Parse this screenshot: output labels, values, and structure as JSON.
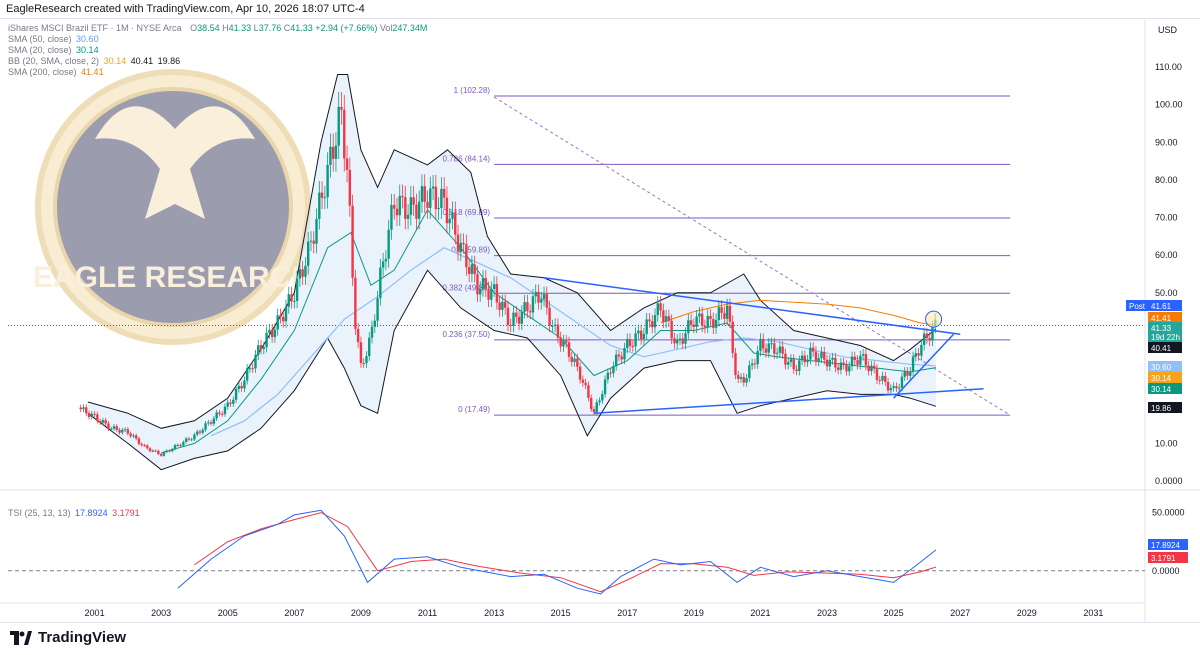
{
  "header": {
    "caption": "EagleResearch created with TradingView.com, Apr 10, 2026 18:07 UTC-4"
  },
  "footer": {
    "brand": "TradingView"
  },
  "legend": {
    "instrument": "iShares MSCI Brazil ETF · 1M · NYSE Arca",
    "ohlc": {
      "o_label": "O",
      "o": "38.54",
      "h_label": "H",
      "h": "41.33",
      "l_label": "L",
      "l": "37.76",
      "c_label": "C",
      "c": "41.33",
      "chg": "+2.94 (+7.66%)",
      "vol_label": "Vol",
      "vol": "247.34M"
    },
    "sma50": {
      "label": "SMA (50, close)",
      "value": "30.60"
    },
    "sma20": {
      "label": "SMA (20, close)",
      "value": "30.14"
    },
    "bb": {
      "label": "BB (20, SMA, close, 2)",
      "v1": "30.14",
      "v2": "40.41",
      "v3": "19.86"
    },
    "sma200": {
      "label": "SMA (200, close)",
      "value": "41.41"
    }
  },
  "tsi_legend": {
    "label": "TSI (25, 13, 13)",
    "v1": "17.8924",
    "v2": "3.1791"
  },
  "watermark": {
    "text": "EAGLE RESEARCH"
  },
  "price_axis": {
    "currency": "USD",
    "ticks": [
      "110.00",
      "100.00",
      "90.00",
      "80.00",
      "70.00",
      "60.00",
      "50.00",
      "40.00",
      "30.00",
      "20.00",
      "10.00",
      "0.0000"
    ],
    "badges": [
      {
        "text": "Post",
        "value": "41.61",
        "color": "#2962ff"
      },
      {
        "value": "41.41",
        "color": "#f57c00"
      },
      {
        "value": "41.33",
        "extra": "19d 22h",
        "color": "#26a69a"
      },
      {
        "value": "40.41",
        "color": "#131722"
      },
      {
        "value": "30.60",
        "color": "#90bff9"
      },
      {
        "value": "30.14",
        "color": "#f7a21b"
      },
      {
        "value": "30.14",
        "color": "#089981"
      },
      {
        "value": "19.86",
        "color": "#131722"
      }
    ]
  },
  "tsi_axis": {
    "ticks": [
      "50.0000",
      "0.0000"
    ],
    "badges": [
      {
        "value": "17.8924",
        "color": "#2962ff"
      },
      {
        "value": "3.1791",
        "color": "#f23645"
      }
    ]
  },
  "chart_data": {
    "type": "line",
    "title": "",
    "x_axis_ticks": [
      "2001",
      "2003",
      "2005",
      "2007",
      "2009",
      "2011",
      "2013",
      "2015",
      "2017",
      "2019",
      "2021",
      "2023",
      "2025",
      "2027",
      "2029",
      "2031"
    ],
    "ylim": [
      0,
      110
    ],
    "price_path": [
      [
        2000.5,
        19.5
      ],
      [
        2001.0,
        17.0
      ],
      [
        2001.5,
        14.0
      ],
      [
        2002.0,
        13.0
      ],
      [
        2002.5,
        9.0
      ],
      [
        2003.0,
        7.0
      ],
      [
        2003.5,
        9.5
      ],
      [
        2004.0,
        12.0
      ],
      [
        2004.5,
        16.0
      ],
      [
        2005.0,
        20.0
      ],
      [
        2005.5,
        27.0
      ],
      [
        2006.0,
        36.0
      ],
      [
        2006.5,
        42.0
      ],
      [
        2007.0,
        50.0
      ],
      [
        2007.5,
        63.0
      ],
      [
        2007.8,
        75.0
      ],
      [
        2008.0,
        82.0
      ],
      [
        2008.4,
        98.0
      ],
      [
        2008.6,
        82.0
      ],
      [
        2008.8,
        45.0
      ],
      [
        2009.0,
        30.0
      ],
      [
        2009.3,
        38.0
      ],
      [
        2009.6,
        55.0
      ],
      [
        2010.0,
        74.0
      ],
      [
        2010.5,
        72.0
      ],
      [
        2011.0,
        76.0
      ],
      [
        2011.5,
        74.0
      ],
      [
        2012.0,
        62.0
      ],
      [
        2012.5,
        52.0
      ],
      [
        2013.0,
        50.0
      ],
      [
        2013.5,
        42.0
      ],
      [
        2014.0,
        46.0
      ],
      [
        2014.4,
        50.0
      ],
      [
        2014.8,
        40.0
      ],
      [
        2015.2,
        35.0
      ],
      [
        2015.6,
        28.0
      ],
      [
        2016.0,
        18.0
      ],
      [
        2016.5,
        30.0
      ],
      [
        2017.0,
        36.0
      ],
      [
        2017.5,
        40.0
      ],
      [
        2018.0,
        46.0
      ],
      [
        2018.5,
        36.0
      ],
      [
        2019.0,
        43.0
      ],
      [
        2019.5,
        42.0
      ],
      [
        2020.0,
        46.0
      ],
      [
        2020.3,
        26.0
      ],
      [
        2020.6,
        28.0
      ],
      [
        2021.0,
        36.0
      ],
      [
        2021.5,
        35.0
      ],
      [
        2022.0,
        30.0
      ],
      [
        2022.5,
        34.0
      ],
      [
        2023.0,
        32.0
      ],
      [
        2023.5,
        30.0
      ],
      [
        2024.0,
        33.0
      ],
      [
        2024.5,
        28.0
      ],
      [
        2025.0,
        24.0
      ],
      [
        2025.5,
        30.0
      ],
      [
        2025.8,
        36.0
      ],
      [
        2026.27,
        41.33
      ]
    ],
    "sma20_path": [
      [
        2003.0,
        7.5
      ],
      [
        2004.0,
        10.0
      ],
      [
        2005.0,
        16.0
      ],
      [
        2006.0,
        27.0
      ],
      [
        2007.0,
        40.0
      ],
      [
        2008.0,
        62.0
      ],
      [
        2008.7,
        66.0
      ],
      [
        2009.3,
        52.0
      ],
      [
        2010.0,
        56.0
      ],
      [
        2011.0,
        72.0
      ],
      [
        2012.0,
        62.0
      ],
      [
        2013.0,
        50.0
      ],
      [
        2014.0,
        44.0
      ],
      [
        2015.0,
        38.0
      ],
      [
        2016.0,
        28.0
      ],
      [
        2017.0,
        32.0
      ],
      [
        2018.0,
        40.0
      ],
      [
        2019.0,
        40.0
      ],
      [
        2020.0,
        42.0
      ],
      [
        2020.8,
        34.0
      ],
      [
        2021.5,
        33.0
      ],
      [
        2022.5,
        32.0
      ],
      [
        2023.5,
        31.0
      ],
      [
        2024.5,
        30.0
      ],
      [
        2025.5,
        29.0
      ],
      [
        2026.27,
        30.14
      ]
    ],
    "sma50_path": [
      [
        2004.5,
        12.0
      ],
      [
        2005.5,
        16.0
      ],
      [
        2006.5,
        23.0
      ],
      [
        2007.5,
        33.0
      ],
      [
        2008.5,
        43.0
      ],
      [
        2009.5,
        49.0
      ],
      [
        2010.5,
        56.0
      ],
      [
        2011.5,
        62.0
      ],
      [
        2012.5,
        58.0
      ],
      [
        2013.5,
        54.0
      ],
      [
        2014.5,
        48.0
      ],
      [
        2015.5,
        42.0
      ],
      [
        2016.5,
        36.0
      ],
      [
        2017.5,
        33.0
      ],
      [
        2018.5,
        35.0
      ],
      [
        2019.5,
        37.0
      ],
      [
        2020.5,
        38.0
      ],
      [
        2021.5,
        37.0
      ],
      [
        2022.5,
        35.0
      ],
      [
        2023.5,
        33.0
      ],
      [
        2024.5,
        32.0
      ],
      [
        2025.5,
        31.0
      ],
      [
        2026.27,
        30.6
      ]
    ],
    "sma200_path": [
      [
        2018.0,
        42.0
      ],
      [
        2019.0,
        45.0
      ],
      [
        2020.0,
        47.0
      ],
      [
        2021.0,
        48.0
      ],
      [
        2022.0,
        47.5
      ],
      [
        2023.0,
        47.0
      ],
      [
        2024.0,
        46.0
      ],
      [
        2025.0,
        44.0
      ],
      [
        2025.8,
        42.0
      ],
      [
        2026.27,
        41.41
      ]
    ],
    "bb_upper_path": [
      [
        2000.8,
        21.0
      ],
      [
        2002.0,
        18.0
      ],
      [
        2003.0,
        14.0
      ],
      [
        2004.0,
        16.0
      ],
      [
        2005.0,
        22.0
      ],
      [
        2006.0,
        35.0
      ],
      [
        2007.0,
        50.0
      ],
      [
        2007.8,
        90.0
      ],
      [
        2008.3,
        108.0
      ],
      [
        2008.6,
        108.0
      ],
      [
        2009.0,
        88.0
      ],
      [
        2009.5,
        78.0
      ],
      [
        2010.0,
        88.0
      ],
      [
        2011.0,
        84.0
      ],
      [
        2011.6,
        88.0
      ],
      [
        2012.3,
        82.0
      ],
      [
        2012.8,
        65.0
      ],
      [
        2013.5,
        55.0
      ],
      [
        2014.5,
        54.0
      ],
      [
        2015.5,
        50.0
      ],
      [
        2016.5,
        40.0
      ],
      [
        2017.5,
        46.0
      ],
      [
        2018.5,
        50.0
      ],
      [
        2019.5,
        50.0
      ],
      [
        2020.5,
        55.0
      ],
      [
        2021.0,
        48.0
      ],
      [
        2022.0,
        40.0
      ],
      [
        2023.0,
        38.0
      ],
      [
        2024.0,
        36.0
      ],
      [
        2025.0,
        32.0
      ],
      [
        2025.5,
        35.0
      ],
      [
        2026.27,
        40.41
      ]
    ],
    "bb_lower_path": [
      [
        2000.8,
        18.0
      ],
      [
        2002.0,
        10.0
      ],
      [
        2003.0,
        3.0
      ],
      [
        2004.0,
        6.0
      ],
      [
        2005.0,
        8.0
      ],
      [
        2006.0,
        14.0
      ],
      [
        2007.0,
        24.0
      ],
      [
        2008.0,
        38.0
      ],
      [
        2008.5,
        30.0
      ],
      [
        2009.0,
        20.0
      ],
      [
        2009.5,
        18.0
      ],
      [
        2010.0,
        40.0
      ],
      [
        2011.0,
        56.0
      ],
      [
        2012.0,
        46.0
      ],
      [
        2013.0,
        40.0
      ],
      [
        2014.0,
        38.0
      ],
      [
        2015.0,
        28.0
      ],
      [
        2015.8,
        12.0
      ],
      [
        2016.5,
        22.0
      ],
      [
        2017.5,
        30.0
      ],
      [
        2018.5,
        32.0
      ],
      [
        2019.5,
        32.0
      ],
      [
        2020.3,
        18.0
      ],
      [
        2021.0,
        20.0
      ],
      [
        2022.0,
        22.0
      ],
      [
        2023.0,
        24.0
      ],
      [
        2024.0,
        23.0
      ],
      [
        2025.0,
        23.0
      ],
      [
        2025.5,
        22.0
      ],
      [
        2026.27,
        19.86
      ]
    ],
    "fib_levels": [
      {
        "ratio": "1",
        "price": 102.28,
        "label": "1 (102.28)"
      },
      {
        "ratio": "0.786",
        "price": 84.14,
        "label": "0.786 (84.14)"
      },
      {
        "ratio": "0.618",
        "price": 69.89,
        "label": "0.618 (69.89)"
      },
      {
        "ratio": "0.5",
        "price": 59.89,
        "label": "0.5 (59.89)"
      },
      {
        "ratio": "0.382",
        "price": 49.88,
        "label": "0.382 (49.88)"
      },
      {
        "ratio": "0.236",
        "price": 37.5,
        "label": "0.236 (37.50)"
      },
      {
        "ratio": "0",
        "price": 17.49,
        "label": "0 (17.49)"
      }
    ],
    "fib_x_range": [
      2013.0,
      2028.5
    ],
    "trend_lines": [
      {
        "from": [
          2014.5,
          54.0
        ],
        "to": [
          2027.0,
          39.0
        ]
      },
      {
        "from": [
          2016.0,
          18.0
        ],
        "to": [
          2027.7,
          24.5
        ]
      },
      {
        "from": [
          2025.0,
          22.0
        ],
        "to": [
          2026.8,
          39.0
        ]
      }
    ],
    "dashed_trend": {
      "from": [
        2013.0,
        102.0
      ],
      "to": [
        2028.5,
        17.5
      ]
    },
    "current_price_line": 41.33,
    "highlight_circle": [
      2026.2,
      43.0
    ],
    "tsi": {
      "ylim": [
        -20,
        60
      ],
      "zero_line": 0,
      "tsi_path": [
        [
          2003.5,
          -15.0
        ],
        [
          2004.5,
          10.0
        ],
        [
          2005.5,
          30.0
        ],
        [
          2006.5,
          40.0
        ],
        [
          2007.0,
          48.0
        ],
        [
          2007.8,
          52.0
        ],
        [
          2008.5,
          30.0
        ],
        [
          2009.2,
          -10.0
        ],
        [
          2010.0,
          10.0
        ],
        [
          2011.0,
          12.0
        ],
        [
          2012.0,
          3.0
        ],
        [
          2013.5,
          -5.0
        ],
        [
          2014.5,
          -3.0
        ],
        [
          2015.5,
          -15.0
        ],
        [
          2016.2,
          -20.0
        ],
        [
          2016.8,
          -5.0
        ],
        [
          2017.8,
          10.0
        ],
        [
          2018.6,
          5.0
        ],
        [
          2019.5,
          8.0
        ],
        [
          2020.3,
          -10.0
        ],
        [
          2021.0,
          3.0
        ],
        [
          2022.0,
          -5.0
        ],
        [
          2023.0,
          0.0
        ],
        [
          2024.0,
          -5.0
        ],
        [
          2025.0,
          -10.0
        ],
        [
          2025.7,
          5.0
        ],
        [
          2026.27,
          17.89
        ]
      ],
      "signal_path": [
        [
          2004.0,
          5.0
        ],
        [
          2005.0,
          25.0
        ],
        [
          2006.0,
          36.0
        ],
        [
          2007.0,
          44.0
        ],
        [
          2007.8,
          50.0
        ],
        [
          2008.6,
          38.0
        ],
        [
          2009.5,
          0.0
        ],
        [
          2010.5,
          8.0
        ],
        [
          2011.5,
          10.0
        ],
        [
          2012.5,
          4.0
        ],
        [
          2013.8,
          -2.0
        ],
        [
          2015.0,
          -6.0
        ],
        [
          2016.2,
          -18.0
        ],
        [
          2017.0,
          -8.0
        ],
        [
          2018.0,
          6.0
        ],
        [
          2019.0,
          6.0
        ],
        [
          2020.0,
          3.0
        ],
        [
          2020.8,
          -4.0
        ],
        [
          2021.8,
          -1.0
        ],
        [
          2023.0,
          -2.0
        ],
        [
          2024.0,
          -3.0
        ],
        [
          2025.0,
          -6.0
        ],
        [
          2025.8,
          -1.0
        ],
        [
          2026.27,
          3.18
        ]
      ]
    }
  }
}
